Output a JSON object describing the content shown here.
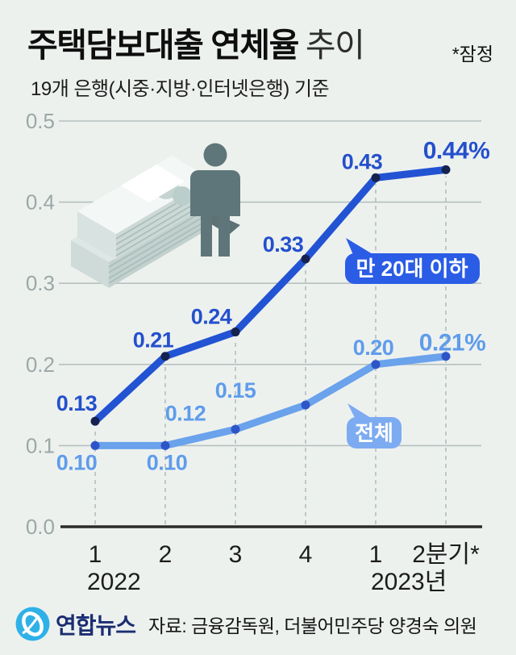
{
  "header": {
    "title_bold": "주택담보대출 연체율",
    "title_light": "추이",
    "note": "*잠정",
    "subtitle": "19개 은행(시중·지방·인터넷은행) 기준"
  },
  "chart_data": {
    "type": "line",
    "title": "주택담보대출 연체율 추이",
    "unit": "%",
    "ylim": [
      0.0,
      0.5
    ],
    "grid": true,
    "y_ticks": [
      "0.5",
      "0.4",
      "0.3",
      "0.2",
      "0.1",
      "0.0"
    ],
    "x_tick_labels": [
      "1",
      "2",
      "3",
      "4",
      "1",
      "2분기*"
    ],
    "year_labels": [
      "2022",
      "2023년"
    ],
    "categories": [
      "2022-1",
      "2022-2",
      "2022-3",
      "2022-4",
      "2023-1",
      "2023-2분기*"
    ],
    "series": [
      {
        "name": "만 20대 이하",
        "values": [
          0.13,
          0.21,
          0.24,
          0.33,
          0.43,
          0.44
        ],
        "labels": [
          "0.13",
          "0.21",
          "0.24",
          "0.33",
          "0.43",
          "0.44%"
        ],
        "color": "#2253d3"
      },
      {
        "name": "전체",
        "values": [
          0.1,
          0.1,
          0.12,
          0.15,
          0.2,
          0.21
        ],
        "labels": [
          "0.10",
          "0.10",
          "0.12",
          "0.15",
          "0.20",
          "0.21%"
        ],
        "color": "#6aa2ec"
      }
    ],
    "colors": {
      "dark_series": "#2253d3",
      "dark_point": "#15224f",
      "dark_label": "#2450cd",
      "light_series": "#6aa2ec",
      "light_point": "#2e55c8",
      "light_label": "#5f9ceb",
      "grid": "#b5c1c0",
      "axis": "#2b2b2b",
      "callout_dark": "#2a5ce6",
      "callout_light": "#7dabf2",
      "background": "#edf1ee"
    }
  },
  "footer": {
    "logo_text": "연합뉴스",
    "source": "자료: 금융감독원, 더불어민주당 양경숙 의원"
  }
}
